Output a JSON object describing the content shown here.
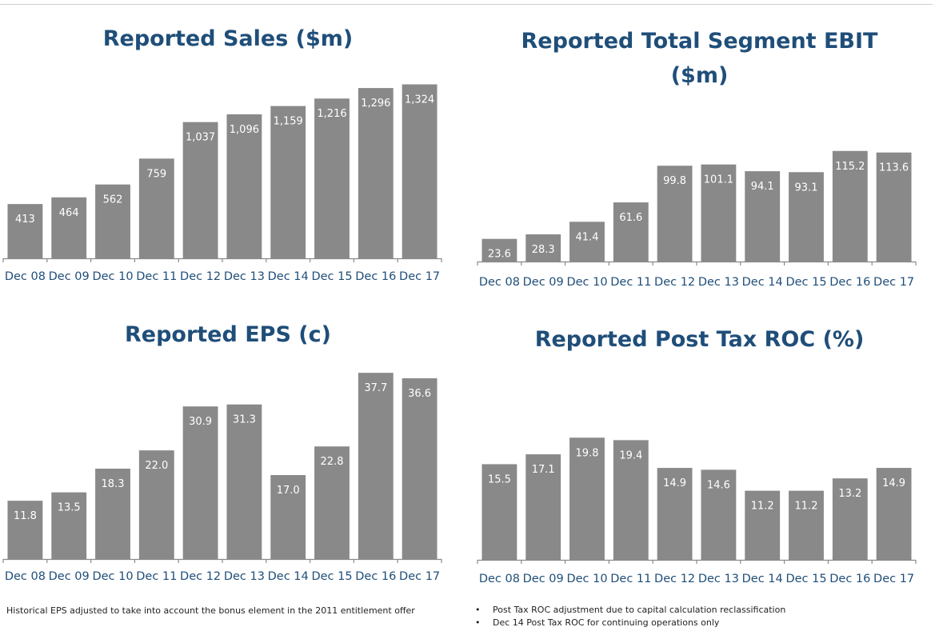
{
  "chart_data": [
    {
      "type": "bar",
      "title": [
        "Reported Sales ($m)"
      ],
      "categories": [
        "Dec 08",
        "Dec 09",
        "Dec 10",
        "Dec 11",
        "Dec 12",
        "Dec 13",
        "Dec 14",
        "Dec 15",
        "Dec 16",
        "Dec 17"
      ],
      "values": [
        413,
        464,
        562,
        759,
        1037,
        1096,
        1159,
        1216,
        1296,
        1324
      ],
      "value_labels": [
        "413",
        "464",
        "562",
        "759",
        "1,037",
        "1,096",
        "1,159",
        "1,216",
        "1,296",
        "1,324"
      ],
      "ylim": [
        0,
        1400
      ],
      "grid": false,
      "colors": {
        "bar": "#898989",
        "title": "#1f4e79",
        "ticks": "#1f4e79"
      }
    },
    {
      "type": "bar",
      "title": [
        "Reported Total Segment EBIT",
        "($m)"
      ],
      "categories": [
        "Dec 08",
        "Dec 09",
        "Dec 10",
        "Dec 11",
        "Dec 12",
        "Dec 13",
        "Dec 14",
        "Dec 15",
        "Dec 16",
        "Dec 17"
      ],
      "values": [
        23.6,
        28.3,
        41.4,
        61.6,
        99.8,
        101.1,
        94.1,
        93.1,
        115.2,
        113.6
      ],
      "value_labels": [
        "23.6",
        "28.3",
        "41.4",
        "61.6",
        "99.8",
        "101.1",
        "94.1",
        "93.1",
        "115.2",
        "113.6"
      ],
      "ylim": [
        0,
        125
      ],
      "grid": false,
      "colors": {
        "bar": "#898989",
        "title": "#1f4e79",
        "ticks": "#1f4e79"
      }
    },
    {
      "type": "bar",
      "title": [
        "Reported EPS (c)"
      ],
      "categories": [
        "Dec 08",
        "Dec 09",
        "Dec 10",
        "Dec 11",
        "Dec 12",
        "Dec 13",
        "Dec 14",
        "Dec 15",
        "Dec 16",
        "Dec 17"
      ],
      "values": [
        11.8,
        13.5,
        18.3,
        22.0,
        30.9,
        31.3,
        17.0,
        22.8,
        37.7,
        36.6
      ],
      "value_labels": [
        "11.8",
        "13.5",
        "18.3",
        "22.0",
        "30.9",
        "31.3",
        "17.0",
        "22.8",
        "37.7",
        "36.6"
      ],
      "ylim": [
        0,
        40
      ],
      "grid": false,
      "colors": {
        "bar": "#898989",
        "title": "#1f4e79",
        "ticks": "#1f4e79"
      }
    },
    {
      "type": "bar",
      "title": [
        "Reported Post Tax ROC (%)"
      ],
      "categories": [
        "Dec 08",
        "Dec 09",
        "Dec 10",
        "Dec 11",
        "Dec 12",
        "Dec 13",
        "Dec 14",
        "Dec 15",
        "Dec 16",
        "Dec 17"
      ],
      "values": [
        15.5,
        17.1,
        19.8,
        19.4,
        14.9,
        14.6,
        11.2,
        11.2,
        13.2,
        14.9
      ],
      "value_labels": [
        "15.5",
        "17.1",
        "19.8",
        "19.4",
        "14.9",
        "14.6",
        "11.2",
        "11.2",
        "13.2",
        "14.9"
      ],
      "ylim": [
        0,
        21
      ],
      "grid": false,
      "colors": {
        "bar": "#898989",
        "title": "#1f4e79",
        "ticks": "#1f4e79"
      }
    }
  ],
  "footnotes": {
    "eps_note": "Historical EPS adjusted to take into account the bonus element in the 2011 entitlement offer",
    "roc_notes": [
      "Post Tax ROC adjustment due to capital calculation reclassification",
      "Dec 14 Post Tax ROC for continuing operations only"
    ]
  }
}
